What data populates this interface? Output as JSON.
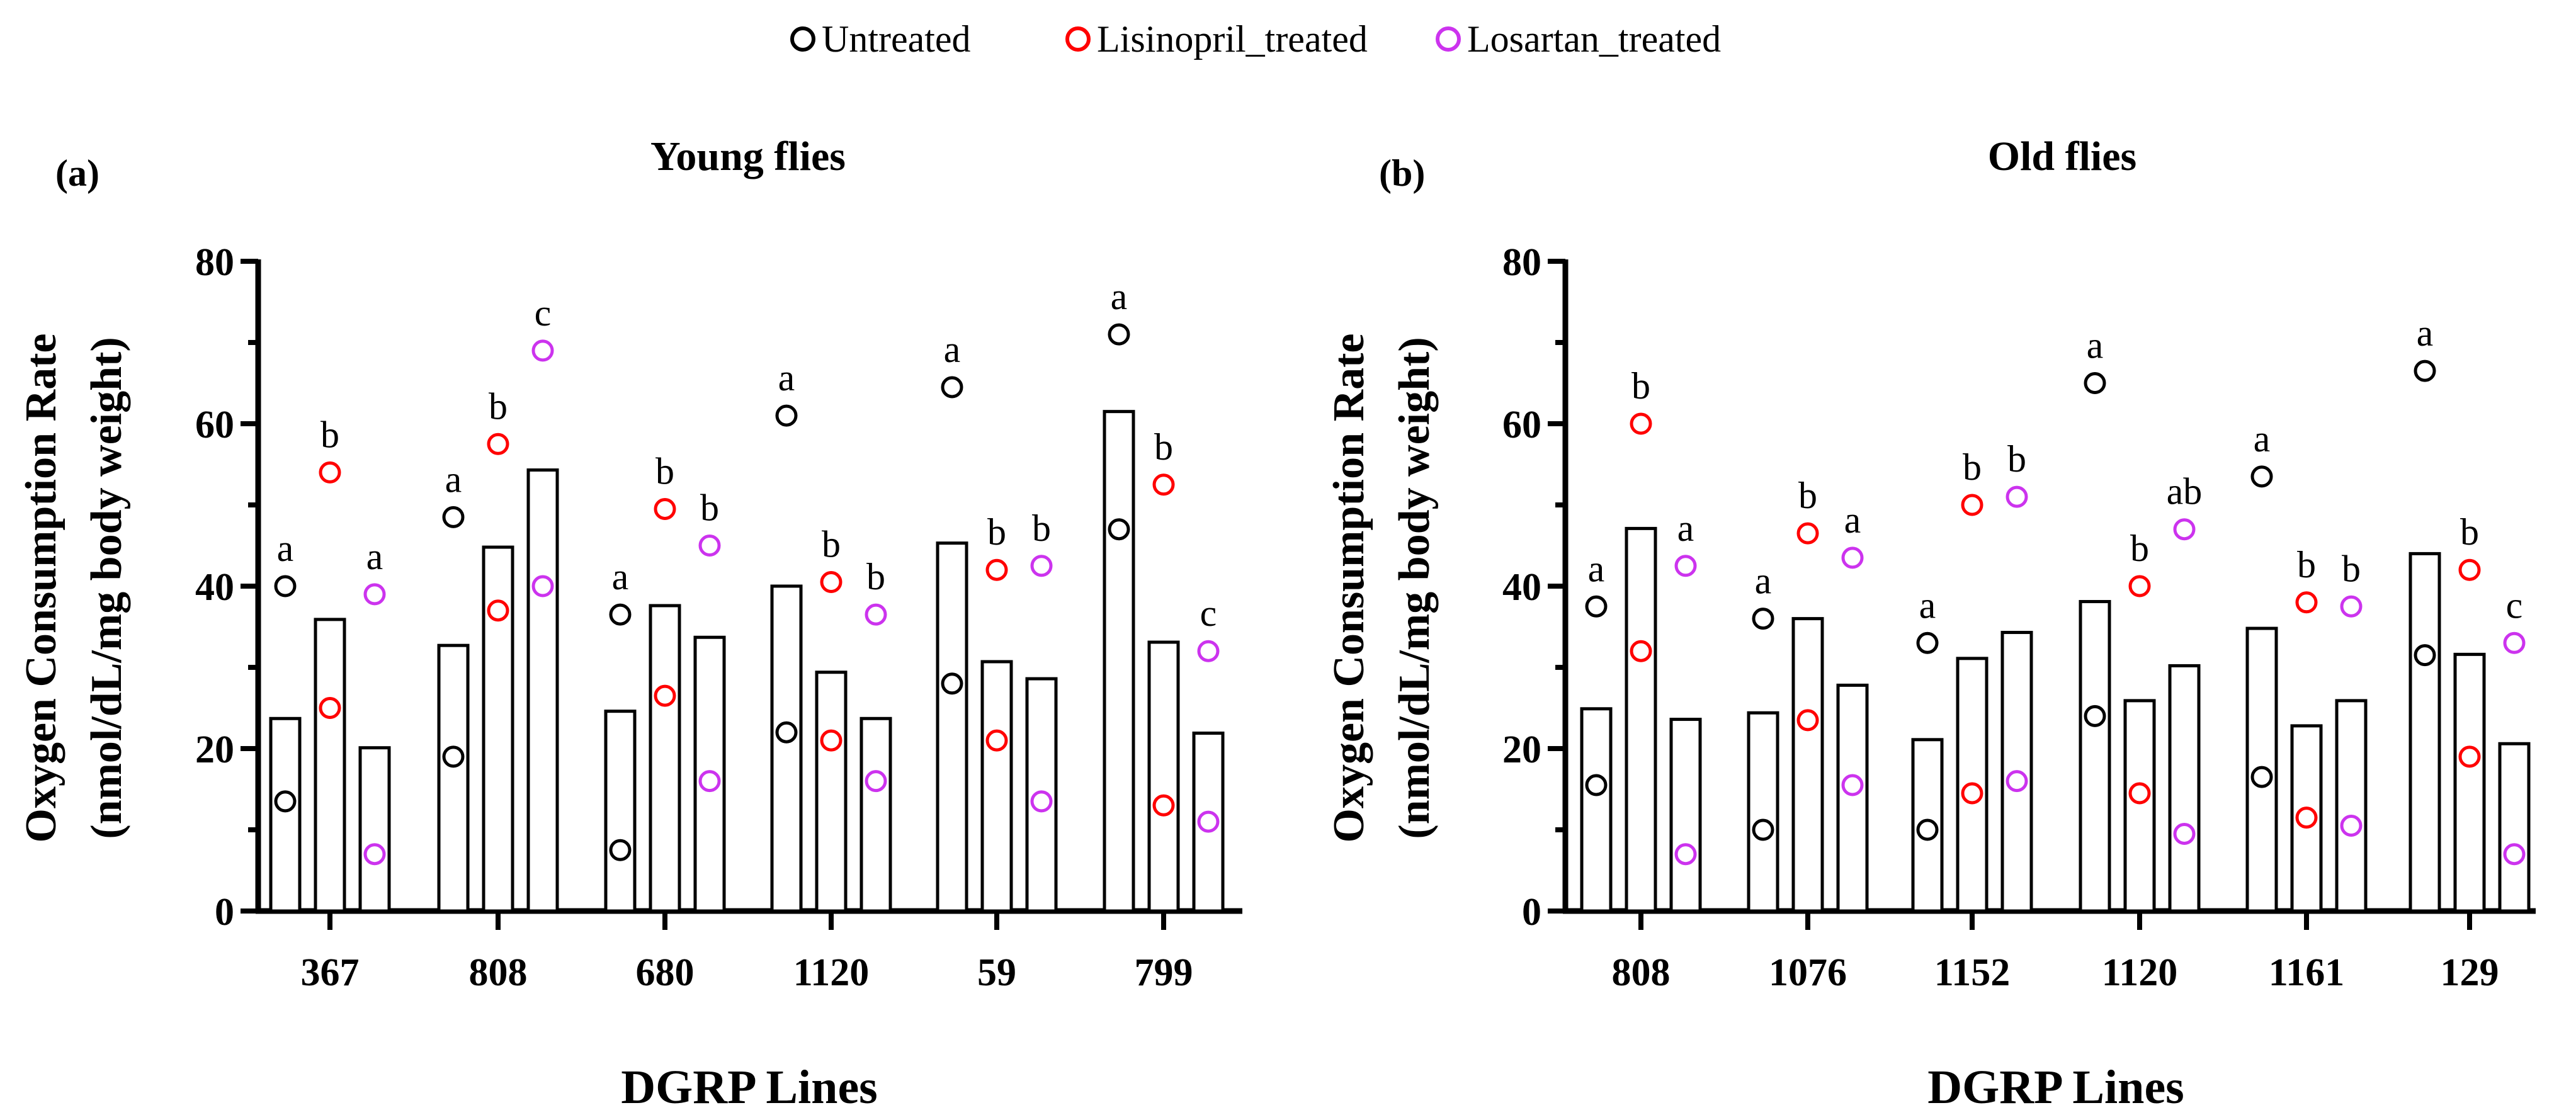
{
  "legend": [
    {
      "label": "Untreated",
      "color": "#000000"
    },
    {
      "label": "Lisinopril_treated",
      "color": "#ff0000"
    },
    {
      "label": "Losartan_treated",
      "color": "#cc33ee"
    }
  ],
  "chart_data": [
    {
      "type": "bar",
      "panel_label": "(a)",
      "title": "Young flies",
      "xlabel": "DGRP Lines",
      "ylabel_line1": "Oxygen Consumption Rate",
      "ylabel_line2": "(nmol/dL/mg body weight)",
      "ylim": [
        0,
        80
      ],
      "yticks": [
        "0",
        "20",
        "40",
        "60",
        "80"
      ],
      "categories": [
        "367",
        "808",
        "680",
        "1120",
        "59",
        "799"
      ],
      "series": [
        {
          "name": "Untreated",
          "values": [
            23.7,
            32.7,
            24.6,
            40.0,
            45.3,
            61.5
          ],
          "min": [
            13.5,
            19,
            7.5,
            22,
            28,
            47
          ],
          "max": [
            40,
            48.5,
            36.5,
            61,
            64.5,
            71
          ],
          "letters": [
            "a",
            "a",
            "a",
            "a",
            "a",
            "a"
          ]
        },
        {
          "name": "Lisinopril_treated",
          "values": [
            35.9,
            44.8,
            37.6,
            29.4,
            30.7,
            33.1
          ],
          "min": [
            25,
            37,
            26.5,
            21,
            21,
            13
          ],
          "max": [
            54,
            57.5,
            49.5,
            40.5,
            42,
            52.5
          ],
          "letters": [
            "b",
            "b",
            "b",
            "b",
            "b",
            "b"
          ]
        },
        {
          "name": "Losartan_treated",
          "values": [
            20.1,
            54.3,
            33.7,
            23.7,
            28.6,
            21.9
          ],
          "min": [
            7,
            40,
            16,
            16,
            13.5,
            11
          ],
          "max": [
            39,
            69,
            45,
            36.5,
            42.5,
            32
          ],
          "letters": [
            "a",
            "c",
            "b",
            "b",
            "b",
            "c"
          ]
        }
      ]
    },
    {
      "type": "bar",
      "panel_label": "(b)",
      "title": "Old flies",
      "xlabel": "DGRP Lines",
      "ylabel_line1": "Oxygen Consumption Rate",
      "ylabel_line2": "(nmol/dL/mg body weight)",
      "ylim": [
        0,
        80
      ],
      "yticks": [
        "0",
        "20",
        "40",
        "60",
        "80"
      ],
      "categories": [
        "808",
        "1076",
        "1152",
        "1120",
        "1161",
        "129"
      ],
      "series": [
        {
          "name": "Untreated",
          "values": [
            24.9,
            24.4,
            21.1,
            38.1,
            34.8,
            44.0
          ],
          "min": [
            15.5,
            10,
            10,
            24,
            16.5,
            31.5
          ],
          "max": [
            37.5,
            36,
            33,
            65,
            53.5,
            66.5
          ],
          "letters": [
            "a",
            "a",
            "a",
            "a",
            "a",
            "a"
          ]
        },
        {
          "name": "Lisinopril_treated",
          "values": [
            47.1,
            36.0,
            31.1,
            25.9,
            22.8,
            31.6
          ],
          "min": [
            32,
            23.5,
            14.5,
            14.5,
            11.5,
            19
          ],
          "max": [
            60,
            46.5,
            50,
            40,
            38,
            42
          ],
          "letters": [
            "b",
            "b",
            "b",
            "b",
            "b",
            "b"
          ]
        },
        {
          "name": "Losartan_treated",
          "values": [
            23.6,
            27.8,
            34.3,
            30.2,
            25.9,
            20.6
          ],
          "min": [
            7,
            15.5,
            16,
            9.5,
            10.5,
            7
          ],
          "max": [
            42.5,
            43.5,
            51,
            47,
            37.5,
            33
          ],
          "letters": [
            "a",
            "a",
            "b",
            "ab",
            "b",
            "c"
          ]
        }
      ]
    }
  ]
}
